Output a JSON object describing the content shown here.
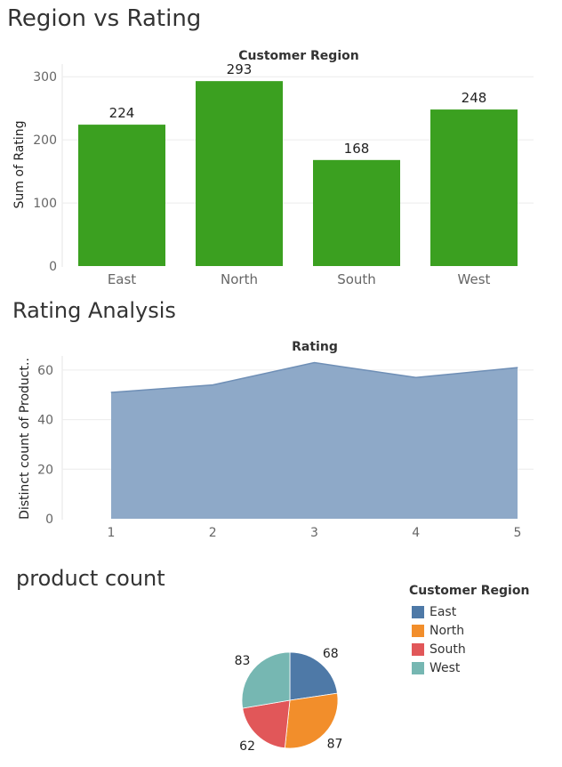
{
  "titles": {
    "bar": "Region vs  Rating",
    "area": "Rating Analysis",
    "pie": "product count"
  },
  "chart_data": [
    {
      "type": "bar",
      "header": "Customer Region",
      "ylabel": "Sum of Rating",
      "categories": [
        "East",
        "North",
        "South",
        "West"
      ],
      "values": [
        224,
        293,
        168,
        248
      ],
      "ylim": [
        0,
        320
      ],
      "yticks": [
        0,
        100,
        200,
        300
      ],
      "color": "#3ba020",
      "grid": true
    },
    {
      "type": "area",
      "header": "Rating",
      "ylabel": "Distinct count of Product..",
      "x": [
        1,
        2,
        3,
        4,
        5
      ],
      "values": [
        51,
        54,
        63,
        57,
        61
      ],
      "ylim": [
        0,
        65
      ],
      "yticks": [
        0,
        20,
        40,
        60
      ],
      "color": "#8ea9c8",
      "line_color": "#6f8fb6",
      "grid": true
    },
    {
      "type": "pie",
      "legend_title": "Customer Region",
      "categories": [
        "East",
        "North",
        "South",
        "West"
      ],
      "values": [
        68,
        87,
        62,
        83
      ],
      "colors": [
        "#4e79a7",
        "#f28e2b",
        "#e15759",
        "#76b7b2"
      ],
      "legend_position": "top-right"
    }
  ]
}
